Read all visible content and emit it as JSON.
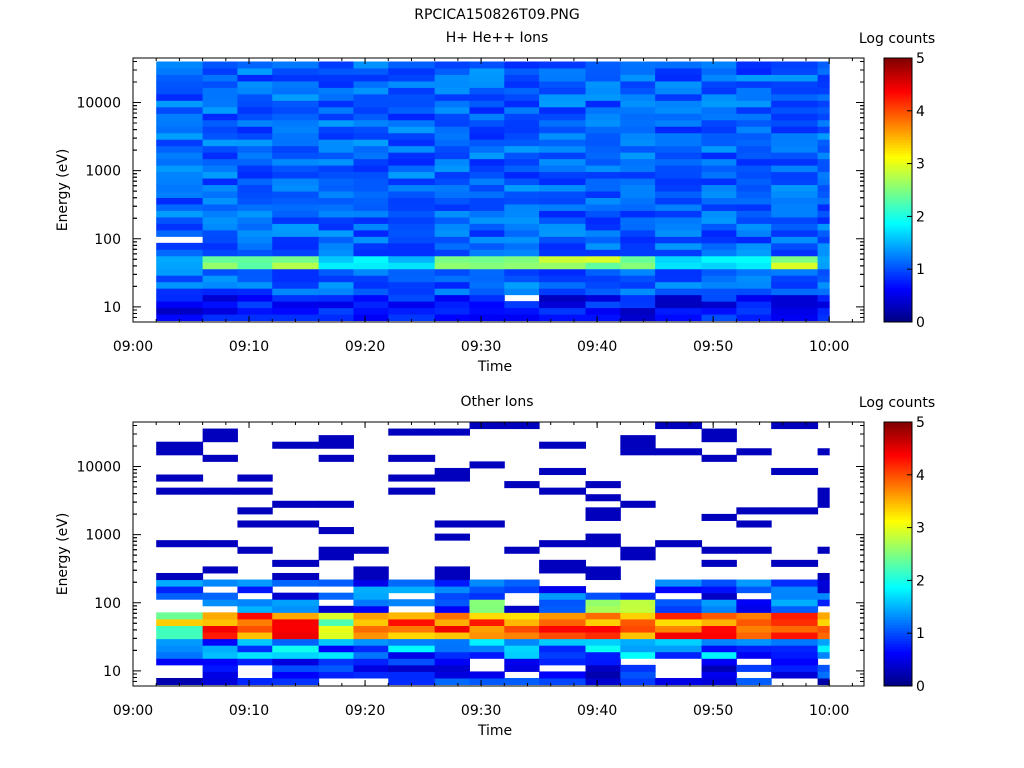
{
  "figure_title": "RPCICA150826T09.PNG",
  "chart_data": [
    {
      "type": "heatmap",
      "title": "H+ He++ Ions",
      "xlabel": "Time",
      "ylabel": "Energy (eV)",
      "colorbar_label": "Log counts",
      "colorbar_ticks": [
        "0",
        "1",
        "2",
        "3",
        "4",
        "5"
      ],
      "color_range": [
        0,
        5
      ],
      "y_scale": "log",
      "ylim": [
        6,
        45000
      ],
      "xlim": [
        "09:00",
        "10:03"
      ],
      "x_ticks": [
        "09:00",
        "09:10",
        "09:20",
        "09:30",
        "09:40",
        "09:50",
        "10:00"
      ],
      "y_ticks": [
        "10",
        "100",
        "1000",
        "10000"
      ],
      "time_bins": [
        "09:02",
        "09:06",
        "09:09",
        "09:12",
        "09:16",
        "09:19",
        "09:22",
        "09:26",
        "09:29",
        "09:32",
        "09:35",
        "09:39",
        "09:42",
        "09:45",
        "09:49",
        "09:52",
        "09:55",
        "09:59"
      ],
      "energy_bins": [
        7,
        9,
        11,
        14,
        18,
        24,
        31,
        40,
        52,
        68,
        90,
        120,
        200,
        400,
        800,
        1600,
        3200,
        6400,
        12800,
        25600,
        40000
      ],
      "notes": "Background counts ~0.8-1.4 across all energies; enhanced band 2.5-3 near 40-60 eV at 09:06-09:16 and 09:35-09:46; white (no data) at 09:02 ~90 eV and 09:32 ~14 eV",
      "colormap": [
        "#000080",
        "#0000ff",
        "#00ffff",
        "#ffff00",
        "#ff0000",
        "#800000"
      ]
    },
    {
      "type": "heatmap",
      "title": "Other Ions",
      "xlabel": "Time",
      "ylabel": "Energy (eV)",
      "colorbar_label": "Log counts",
      "colorbar_ticks": [
        "0",
        "1",
        "2",
        "3",
        "4",
        "5"
      ],
      "color_range": [
        0,
        5
      ],
      "y_scale": "log",
      "ylim": [
        6,
        45000
      ],
      "xlim": [
        "09:00",
        "10:03"
      ],
      "x_ticks": [
        "09:00",
        "09:10",
        "09:20",
        "09:30",
        "09:40",
        "09:50",
        "10:00"
      ],
      "y_ticks": [
        "10",
        "100",
        "1000",
        "10000"
      ],
      "time_bins": [
        "09:02",
        "09:06",
        "09:09",
        "09:12",
        "09:16",
        "09:19",
        "09:22",
        "09:26",
        "09:29",
        "09:32",
        "09:35",
        "09:39",
        "09:42",
        "09:45",
        "09:49",
        "09:52",
        "09:55",
        "09:59"
      ],
      "notes": "Sparse single-count lines above 200 eV; dense band 15-200 eV peaking ~4-4.5 log counts around 40-50 eV",
      "colormap": [
        "#000080",
        "#0000ff",
        "#00ffff",
        "#ffff00",
        "#ff0000",
        "#800000"
      ]
    }
  ]
}
